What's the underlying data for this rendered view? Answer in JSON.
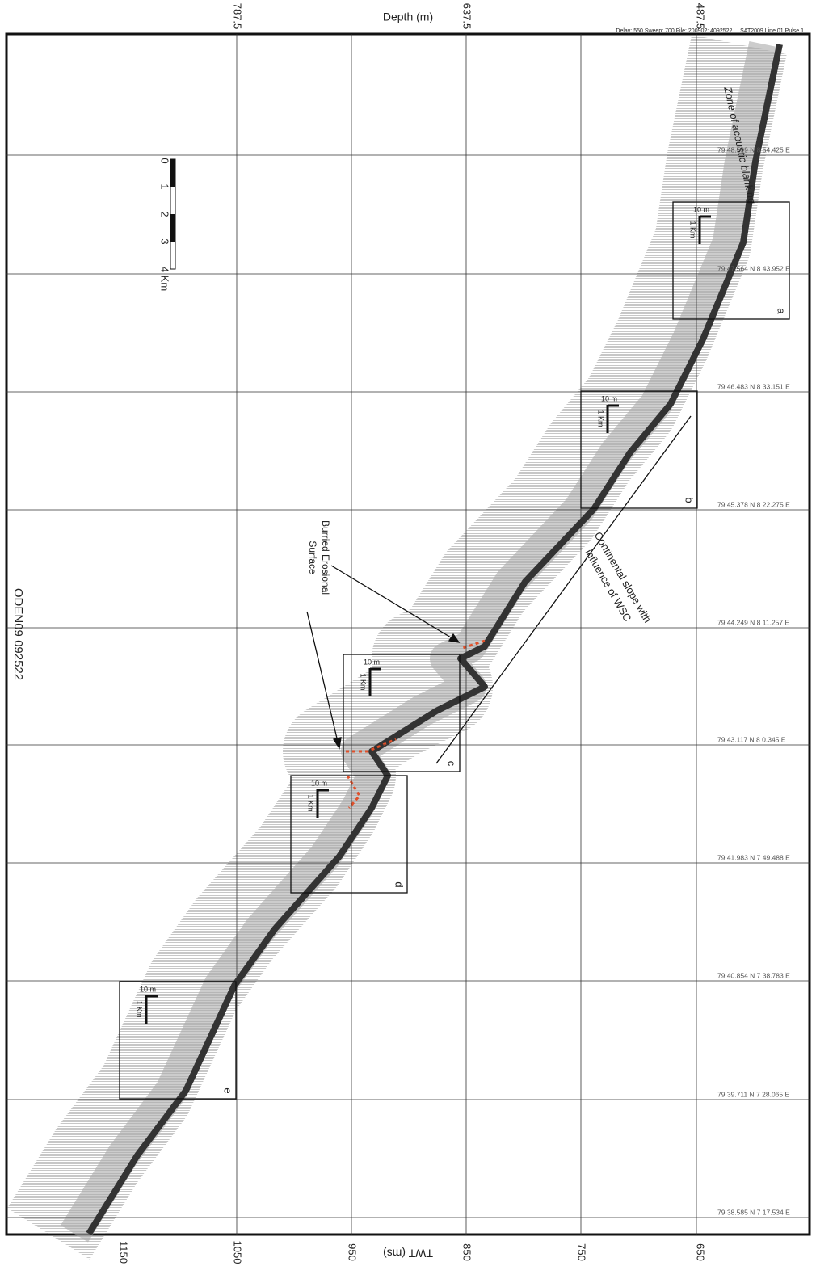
{
  "header": {
    "depth_title": "Depth (m)",
    "depth_ticks": [
      "787.5",
      "637.5",
      "487.5"
    ],
    "twt_title": "TWT (ms)",
    "twt_ticks": [
      "1150",
      "1050",
      "950",
      "850",
      "750",
      "650"
    ],
    "file_info": "Delay: 550 Sweep: 700 File: 20090?: 4092522 ... SAT2009 Line 01 Pulse 1"
  },
  "coordinates": [
    "79 48.599 N 8 54.425 E",
    "79 47.564 N 8 43.952 E",
    "79 46.483 N 8 33.151 E",
    "79 45.378 N 8 22.275 E",
    "79 44.249 N 8 11.257 E",
    "79 43.117 N 8 0.345 E",
    "79 41.983 N 7 49.488 E",
    "79 40.854 N 7 38.783 E",
    "79 39.711 N 7 28.065 E",
    "79 38.585 N 7 17.534 E"
  ],
  "scale_bar": [
    "0",
    "1",
    "2",
    "3",
    "4 Km"
  ],
  "profile_id": "ODEN09 092522",
  "annotations": {
    "blanking": "Zone of acoustic blanking",
    "slope": [
      "Continental slope with",
      "influence of WSC"
    ],
    "erosional": [
      "Burried Erosional",
      "Surface"
    ]
  },
  "boxes": [
    {
      "label": "a",
      "vertical_scale": "10 m",
      "horizontal_scale": "1 Km"
    },
    {
      "label": "b",
      "vertical_scale": "10 m",
      "horizontal_scale": "1 Km"
    },
    {
      "label": "c",
      "vertical_scale": "10 m",
      "horizontal_scale": "1 Km"
    },
    {
      "label": "d",
      "vertical_scale": "10 m",
      "horizontal_scale": "1 Km"
    },
    {
      "label": "e",
      "vertical_scale": "10 m",
      "horizontal_scale": "1 Km"
    }
  ]
}
